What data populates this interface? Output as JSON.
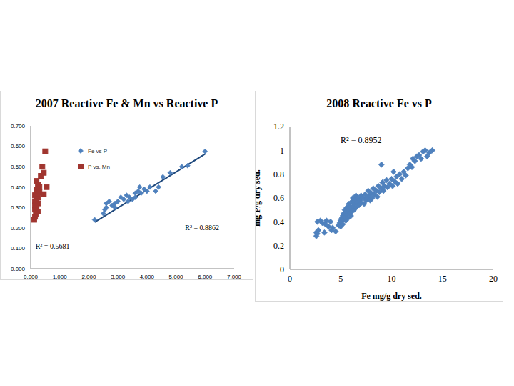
{
  "chart_data": [
    {
      "type": "scatter",
      "title": "2007 Reactive Fe & Mn vs Reactive P",
      "xlim": [
        0,
        7
      ],
      "ylim": [
        0,
        0.7
      ],
      "xticks": [
        {
          "value": 0,
          "label": "0.000"
        },
        {
          "value": 1,
          "label": "1.000"
        },
        {
          "value": 2,
          "label": "2.000"
        },
        {
          "value": 3,
          "label": "3.000"
        },
        {
          "value": 4,
          "label": "4.000"
        },
        {
          "value": 5,
          "label": "5.000"
        },
        {
          "value": 6,
          "label": "6.000"
        },
        {
          "value": 7,
          "label": "7.000"
        }
      ],
      "yticks": [
        {
          "value": 0,
          "label": "0.000"
        },
        {
          "value": 0.1,
          "label": "0.100"
        },
        {
          "value": 0.2,
          "label": "0.200"
        },
        {
          "value": 0.3,
          "label": "0.300"
        },
        {
          "value": 0.4,
          "label": "0.400"
        },
        {
          "value": 0.5,
          "label": "0.500"
        },
        {
          "value": 0.6,
          "label": "0.600"
        },
        {
          "value": 0.7,
          "label": "0.700"
        }
      ],
      "grid": false,
      "legend": "top",
      "series": [
        {
          "name": "Fe vs P",
          "color": "#4f81bd",
          "marker": "diamond",
          "x": [
            2.2,
            2.5,
            2.55,
            2.6,
            2.6,
            2.7,
            2.8,
            2.9,
            2.9,
            3.0,
            3.1,
            3.2,
            3.3,
            3.35,
            3.4,
            3.5,
            3.6,
            3.6,
            3.7,
            3.75,
            3.8,
            3.9,
            4.0,
            4.1,
            4.3,
            4.4,
            4.55,
            4.8,
            5.2,
            5.4,
            6.0
          ],
          "values": [
            0.24,
            0.27,
            0.29,
            0.3,
            0.32,
            0.33,
            0.31,
            0.32,
            0.3,
            0.33,
            0.35,
            0.34,
            0.36,
            0.33,
            0.35,
            0.34,
            0.37,
            0.35,
            0.38,
            0.4,
            0.37,
            0.39,
            0.38,
            0.4,
            0.38,
            0.4,
            0.45,
            0.47,
            0.5,
            0.505,
            0.575
          ],
          "trendline": {
            "x": [
              2.2,
              6.0
            ],
            "values": [
              0.228,
              0.562
            ]
          }
        },
        {
          "name": "P vs. Mn",
          "color": "#a0352f",
          "marker": "square",
          "x": [
            0.5,
            0.4,
            0.45,
            0.35,
            0.2,
            0.25,
            0.3,
            0.55,
            0.2,
            0.3,
            0.45,
            0.15,
            0.25,
            0.2,
            0.15,
            0.25,
            0.15,
            0.2,
            0.15,
            0.25,
            0.18,
            0.15,
            0.12
          ],
          "values": [
            0.575,
            0.5,
            0.47,
            0.455,
            0.43,
            0.41,
            0.4,
            0.4,
            0.385,
            0.375,
            0.365,
            0.36,
            0.35,
            0.34,
            0.33,
            0.32,
            0.31,
            0.3,
            0.29,
            0.28,
            0.27,
            0.255,
            0.24
          ]
        }
      ],
      "annotations": [
        {
          "text": "R² = 0.8862",
          "x": 5.9,
          "y": 0.2
        },
        {
          "text": "R² = 0.5681",
          "x": 0.75,
          "y": 0.11
        }
      ]
    },
    {
      "type": "scatter",
      "title": "2008 Reactive Fe vs P",
      "x_label": "Fe mg/g dry sed.",
      "y_label": "mg P/g dry sed.",
      "xlim": [
        0,
        20
      ],
      "ylim": [
        0,
        1.2
      ],
      "xticks": [
        0,
        5,
        10,
        15,
        20
      ],
      "yticks": [
        0,
        0.2,
        0.4,
        0.6,
        0.8,
        1,
        1.2
      ],
      "grid": false,
      "series": [
        {
          "color": "#4f81bd",
          "marker": "diamond",
          "x": [
            2.6,
            2.6,
            2.7,
            2.8,
            2.7,
            3.0,
            3.2,
            3.5,
            3.6,
            3.8,
            4.0,
            4.2,
            4.1,
            4.5,
            4.8,
            4.9,
            5.0,
            5.0,
            5.1,
            5.2,
            5.2,
            5.3,
            5.3,
            5.4,
            5.4,
            5.5,
            5.5,
            5.6,
            5.6,
            5.7,
            5.7,
            5.8,
            5.8,
            5.9,
            5.9,
            6.0,
            6.0,
            6.1,
            6.1,
            6.2,
            6.2,
            6.3,
            6.3,
            6.4,
            6.5,
            6.5,
            6.6,
            6.7,
            6.8,
            6.9,
            7.0,
            7.0,
            7.2,
            7.3,
            7.4,
            7.5,
            7.6,
            7.7,
            7.8,
            7.9,
            8.0,
            8.1,
            8.2,
            8.3,
            8.5,
            8.6,
            8.7,
            8.8,
            9.0,
            9.1,
            9.2,
            9.3,
            9.5,
            9.6,
            9.8,
            10.0,
            10.1,
            10.2,
            10.3,
            10.5,
            10.6,
            10.8,
            11.0,
            11.2,
            11.4,
            11.6,
            11.8,
            12.0,
            12.1,
            12.3,
            12.5,
            12.7,
            12.9,
            13.1,
            13.3,
            13.5,
            13.7,
            14.0,
            9.0,
            3.4
          ],
          "values": [
            0.28,
            0.31,
            0.3,
            0.33,
            0.4,
            0.41,
            0.39,
            0.38,
            0.41,
            0.36,
            0.4,
            0.35,
            0.33,
            0.32,
            0.37,
            0.39,
            0.41,
            0.36,
            0.43,
            0.45,
            0.38,
            0.47,
            0.42,
            0.5,
            0.44,
            0.48,
            0.41,
            0.52,
            0.46,
            0.49,
            0.43,
            0.55,
            0.5,
            0.47,
            0.53,
            0.51,
            0.45,
            0.57,
            0.49,
            0.53,
            0.6,
            0.55,
            0.5,
            0.58,
            0.52,
            0.62,
            0.56,
            0.6,
            0.54,
            0.58,
            0.62,
            0.56,
            0.6,
            0.55,
            0.63,
            0.58,
            0.6,
            0.66,
            0.62,
            0.58,
            0.64,
            0.6,
            0.68,
            0.63,
            0.66,
            0.61,
            0.7,
            0.65,
            0.68,
            0.73,
            0.66,
            0.7,
            0.75,
            0.69,
            0.72,
            0.76,
            0.7,
            0.82,
            0.74,
            0.78,
            0.72,
            0.8,
            0.76,
            0.82,
            0.79,
            0.85,
            0.88,
            0.86,
            0.93,
            0.91,
            0.95,
            0.96,
            0.93,
            0.99,
            1.0,
            0.95,
            0.98,
            1.0,
            0.88,
            0.31
          ]
        }
      ],
      "annotations": [
        {
          "text": "R² = 0.8952",
          "x": 7,
          "y": 1.09
        }
      ]
    }
  ]
}
